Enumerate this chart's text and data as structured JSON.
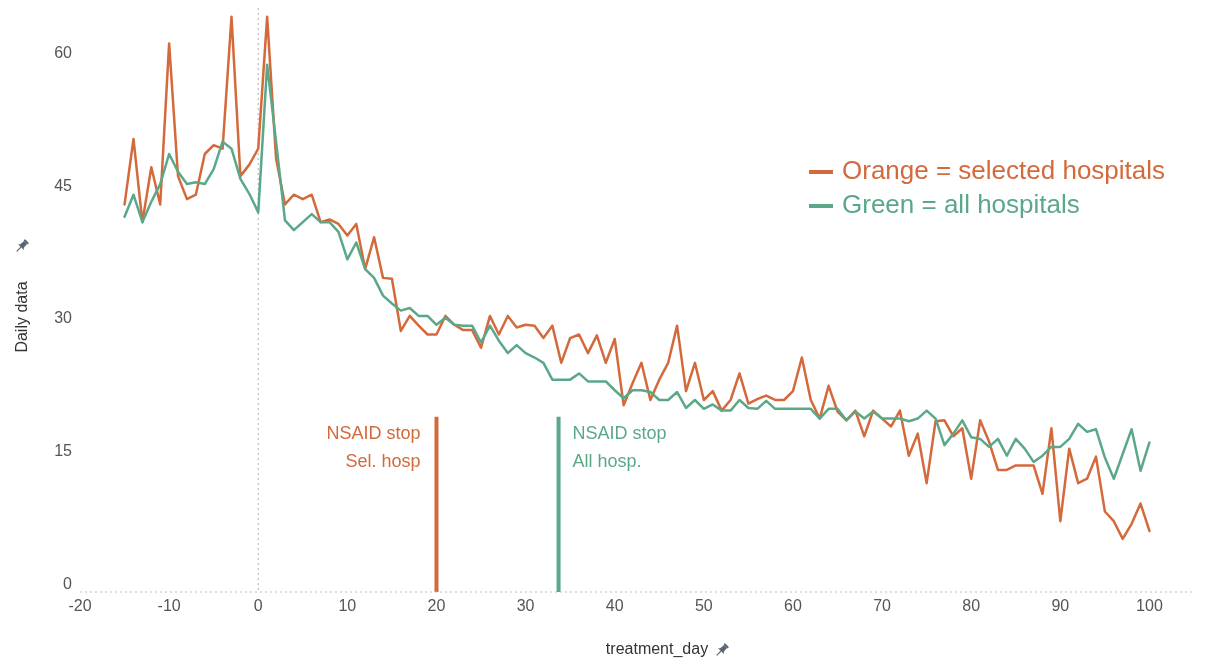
{
  "chart_data": {
    "type": "line",
    "xlabel": "treatment_day",
    "ylabel": "Daily data",
    "x": [
      -15,
      -14,
      -13,
      -12,
      -11,
      -10,
      -9,
      -8,
      -7,
      -6,
      -5,
      -4,
      -3,
      -2,
      -1,
      0,
      1,
      2,
      3,
      4,
      5,
      6,
      7,
      8,
      9,
      10,
      11,
      12,
      13,
      14,
      15,
      16,
      17,
      18,
      19,
      20,
      21,
      22,
      23,
      24,
      25,
      26,
      27,
      28,
      29,
      30,
      31,
      32,
      33,
      34,
      35,
      36,
      37,
      38,
      39,
      40,
      41,
      42,
      43,
      44,
      45,
      46,
      47,
      48,
      49,
      50,
      51,
      52,
      53,
      54,
      55,
      56,
      57,
      58,
      59,
      60,
      61,
      62,
      63,
      64,
      65,
      66,
      67,
      68,
      69,
      70,
      71,
      72,
      73,
      74,
      75,
      76,
      77,
      78,
      79,
      80,
      81,
      82,
      83,
      84,
      85,
      86,
      87,
      88,
      89,
      90,
      91,
      92,
      93,
      94,
      95,
      96,
      97,
      98,
      99,
      100
    ],
    "series": [
      {
        "name": "Orange = selected hospitals",
        "color": "#d4693c",
        "values": [
          42.8,
          50.2,
          40.8,
          47,
          42.8,
          61,
          46,
          43.4,
          43.9,
          48.5,
          49.5,
          49.1,
          64,
          46,
          47.3,
          49.1,
          64,
          48,
          42.8,
          43.9,
          43.4,
          43.9,
          40.8,
          41.1,
          40.6,
          39.3,
          40.6,
          35.5,
          39.1,
          34.5,
          34.4,
          28.5,
          30.2,
          29.1,
          28.1,
          28.1,
          30.2,
          29.2,
          28.6,
          28.6,
          26.6,
          30.2,
          28.1,
          30.2,
          28.9,
          29.2,
          29.1,
          27.7,
          29.1,
          24.9,
          27.7,
          28.1,
          26,
          28,
          24.9,
          27.6,
          20.1,
          22.6,
          24.9,
          20.7,
          23,
          24.9,
          29.1,
          21.7,
          24.9,
          20.7,
          21.7,
          19.5,
          20.7,
          23.7,
          20.3,
          20.8,
          21.2,
          20.7,
          20.7,
          21.7,
          25.5,
          20.7,
          18.6,
          22.3,
          19.4,
          18.4,
          19.5,
          16.6,
          19.5,
          18.6,
          17.7,
          19.5,
          14.4,
          16.9,
          11.3,
          18.3,
          18.4,
          16.6,
          17.5,
          11.8,
          18.4,
          16,
          12.8,
          12.8,
          13.3,
          13.3,
          13.3,
          10.1,
          17.5,
          7,
          15.2,
          11.3,
          11.8,
          14.3,
          8.1,
          7,
          5,
          6.7,
          9,
          5.9
        ]
      },
      {
        "name": "Green = all hospitals",
        "color": "#5aa888",
        "values": [
          41.4,
          43.9,
          40.8,
          43.1,
          45.1,
          48.5,
          46.5,
          45.1,
          45.3,
          45.1,
          46.8,
          49.9,
          49.1,
          45.7,
          44,
          41.9,
          58.6,
          49.9,
          41,
          39.9,
          40.8,
          41.7,
          40.8,
          40.8,
          39.7,
          36.6,
          38.5,
          35.5,
          34.5,
          32.5,
          31.6,
          30.8,
          31.1,
          30.2,
          30.2,
          29.2,
          30,
          29.2,
          29.1,
          29.1,
          27.2,
          29.1,
          27.4,
          26,
          26.9,
          26,
          25.5,
          24.9,
          23,
          23,
          23,
          23.7,
          22.8,
          22.8,
          22.8,
          21.8,
          20.9,
          21.8,
          21.8,
          21.6,
          20.7,
          20.7,
          21.6,
          19.8,
          20.7,
          19.7,
          20.2,
          19.5,
          19.5,
          20.7,
          19.8,
          19.7,
          20.6,
          19.7,
          19.7,
          19.7,
          19.7,
          19.7,
          18.6,
          19.7,
          19.7,
          18.4,
          19.4,
          18.6,
          19.4,
          18.6,
          18.6,
          18.6,
          18.3,
          18.6,
          19.5,
          18.6,
          15.6,
          16.9,
          18.4,
          16.5,
          16.3,
          15.4,
          16.3,
          14.4,
          16.3,
          15.2,
          13.7,
          14.4,
          15.4,
          15.4,
          16.3,
          18,
          17.1,
          17.4,
          14.2,
          11.8,
          14.6,
          17.4,
          12.7,
          15.9
        ]
      }
    ],
    "xlim": [
      -20,
      105
    ],
    "xticks": [
      -20,
      -10,
      0,
      10,
      20,
      30,
      40,
      50,
      60,
      70,
      80,
      90,
      100
    ],
    "ylim": [
      -1,
      65
    ],
    "yticks": [
      0,
      15,
      30,
      45,
      60
    ],
    "ref_lines": [
      {
        "axis": "x",
        "value": 0,
        "color": "#bbbbbb",
        "line_style": "dotted"
      },
      {
        "axis": "x",
        "value": 20,
        "label": "NSAID stop\nSel. hosp",
        "color": "#d4693c",
        "line_style": "solid"
      },
      {
        "axis": "x",
        "value": 33.7,
        "label": "NSAID stop\nAll hosp.",
        "color": "#5aa888",
        "line_style": "solid"
      }
    ],
    "grid": false,
    "legend": "top right",
    "marker": "none",
    "line_style": "solid"
  }
}
